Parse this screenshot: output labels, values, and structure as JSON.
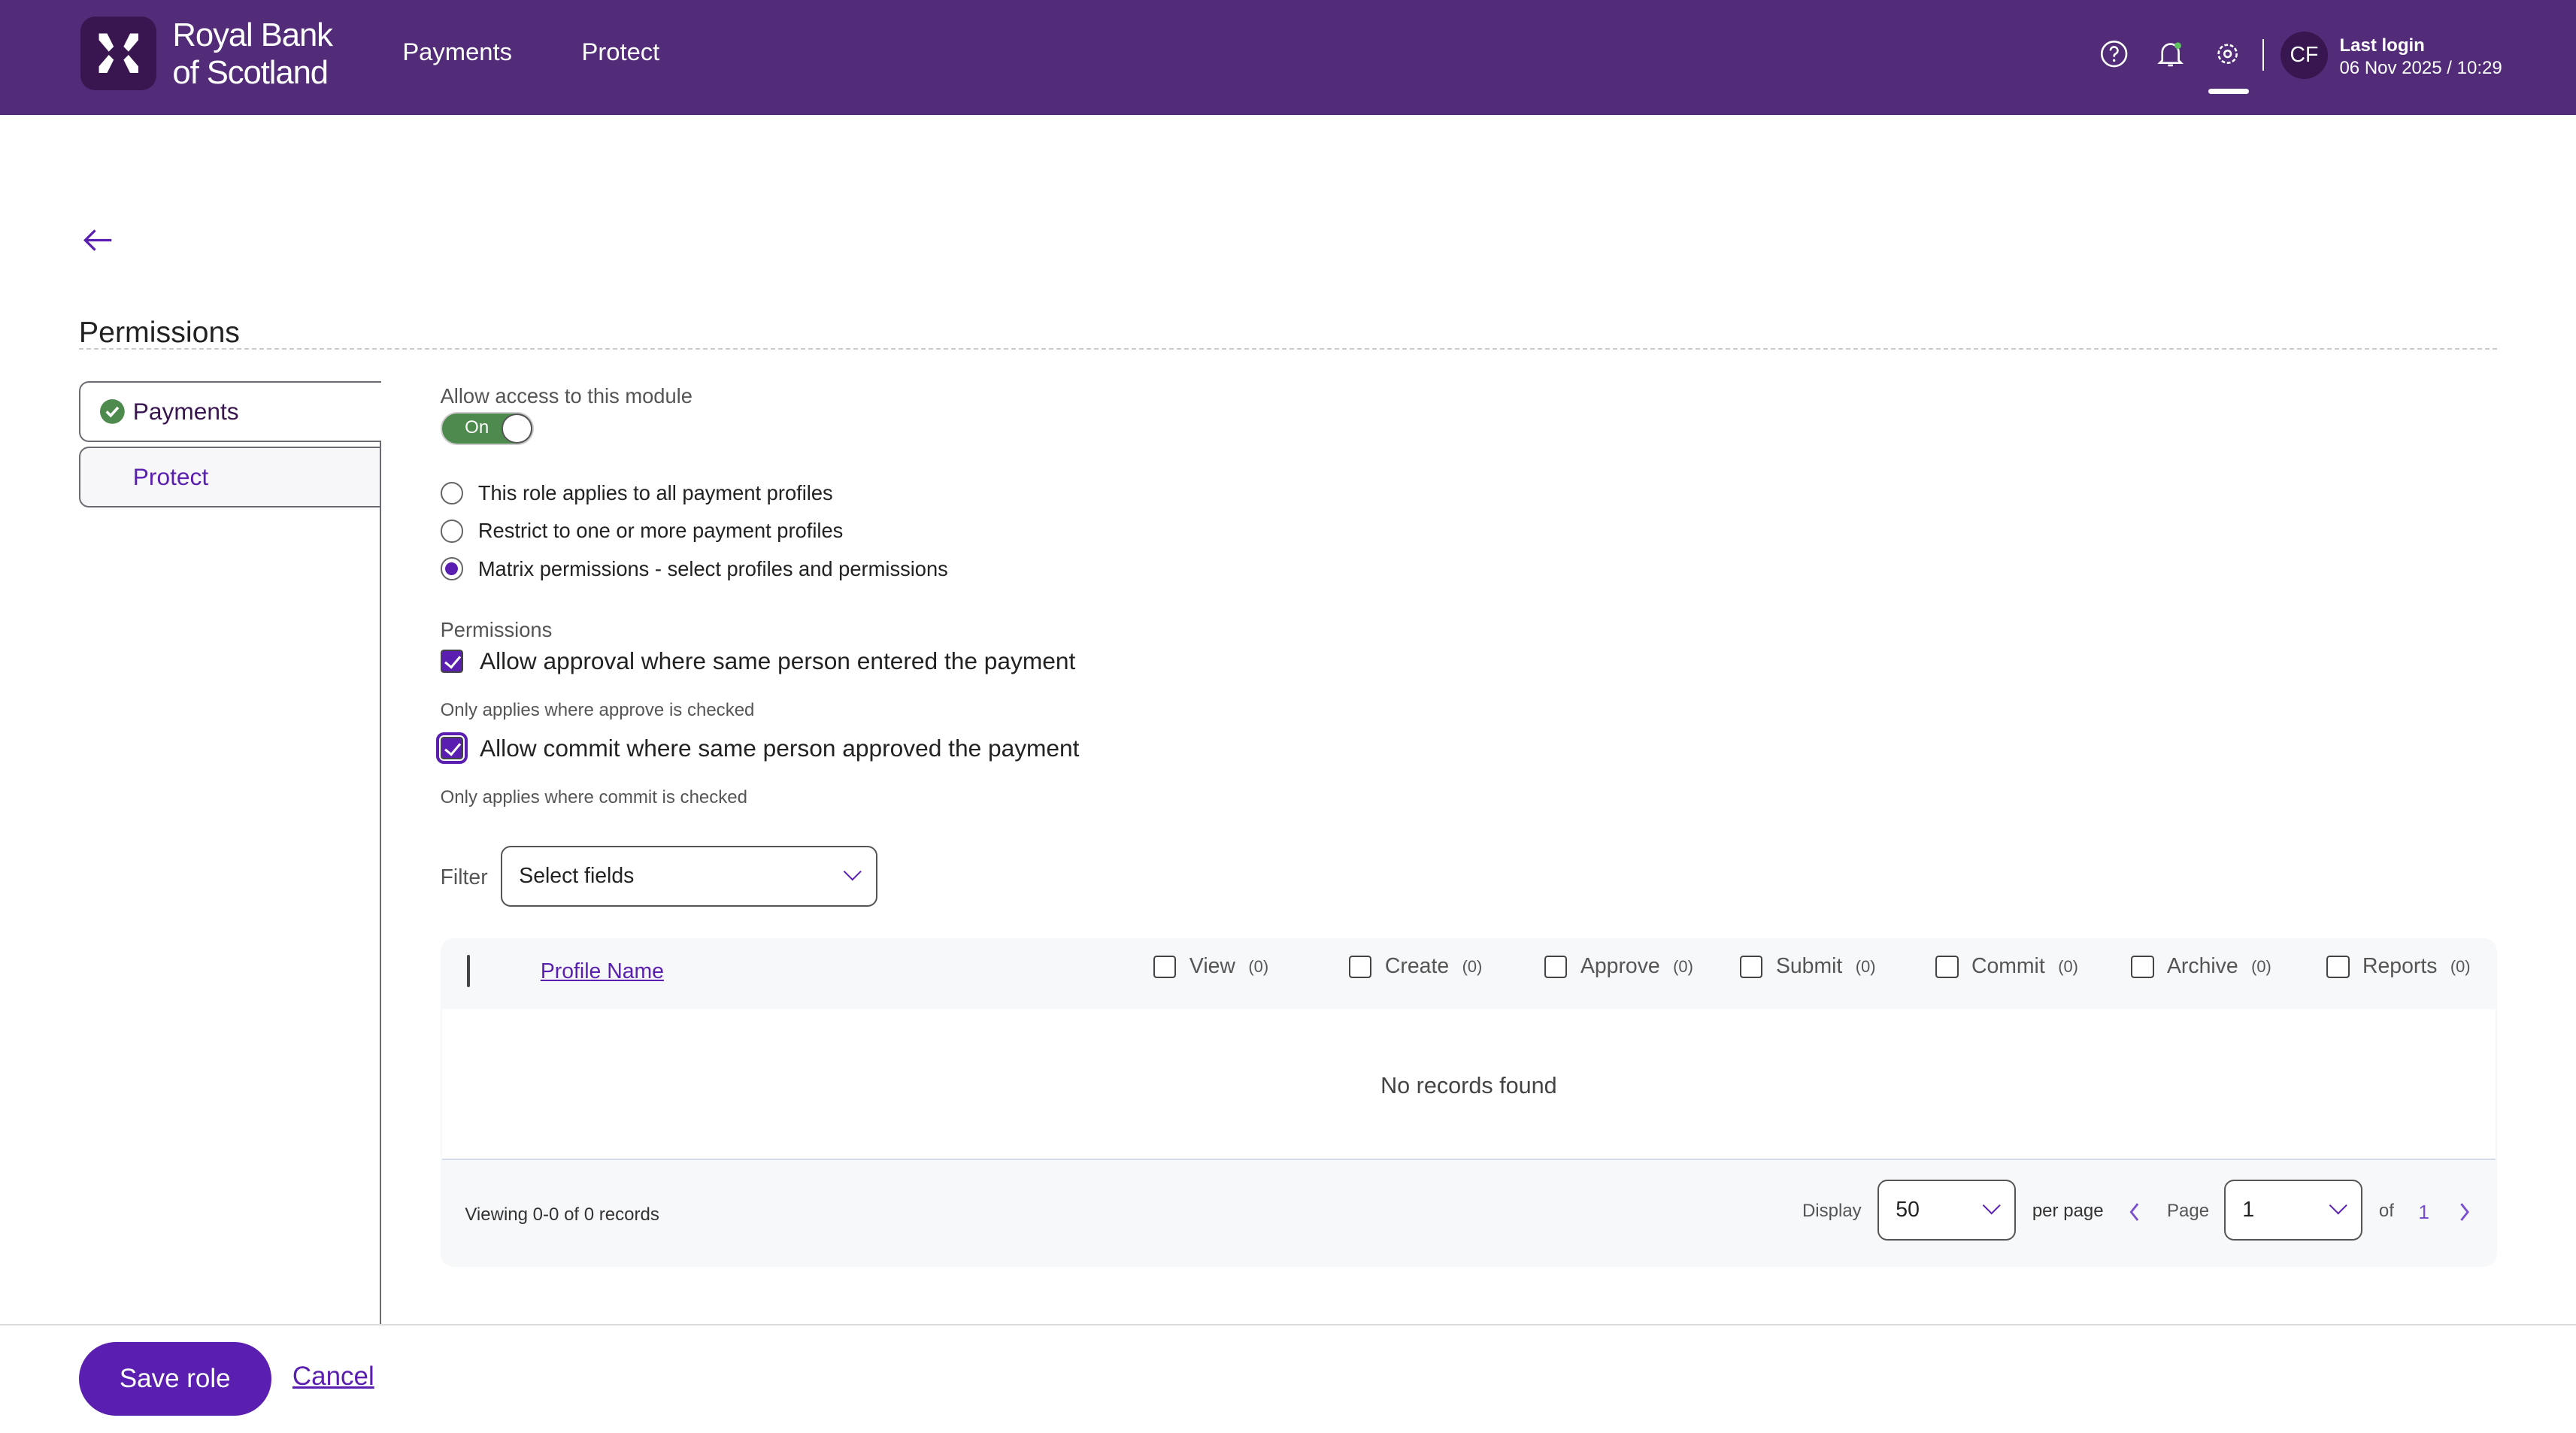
{
  "header": {
    "brand_line1": "Royal Bank",
    "brand_line2": "of Scotland",
    "nav": [
      {
        "label": "Payments"
      },
      {
        "label": "Protect"
      }
    ],
    "icons": [
      "help-icon",
      "bell-icon",
      "gear-icon"
    ],
    "avatar_initials": "CF",
    "last_login_label": "Last login",
    "last_login_value": "06 Nov 2025 / 10:29",
    "color": "#532c79"
  },
  "page": {
    "title": "Permissions"
  },
  "sidebar": {
    "items": [
      {
        "label": "Payments",
        "complete": true
      },
      {
        "label": "Protect",
        "complete": false
      }
    ]
  },
  "module": {
    "access_label": "Allow access to this module",
    "toggle_label": "On",
    "toggle_on": true,
    "radios": [
      {
        "label": "This role applies to all payment profiles",
        "selected": false
      },
      {
        "label": "Restrict to one or more payment profiles",
        "selected": false
      },
      {
        "label": "Matrix permissions - select profiles and permissions",
        "selected": true
      }
    ],
    "permissions_label": "Permissions",
    "checks": [
      {
        "label": "Allow approval where same person entered the payment",
        "checked": true,
        "hint": "Only applies where approve is checked"
      },
      {
        "label": "Allow commit where same person approved the payment",
        "checked": true,
        "hint": "Only applies where commit is checked"
      }
    ]
  },
  "filter": {
    "label": "Filter",
    "placeholder": "Select fields"
  },
  "table": {
    "profile_header": "Profile Name",
    "columns": [
      {
        "label": "View",
        "count": "(0)"
      },
      {
        "label": "Create",
        "count": "(0)"
      },
      {
        "label": "Approve",
        "count": "(0)"
      },
      {
        "label": "Submit",
        "count": "(0)"
      },
      {
        "label": "Commit",
        "count": "(0)"
      },
      {
        "label": "Archive",
        "count": "(0)"
      },
      {
        "label": "Reports",
        "count": "(0)"
      }
    ],
    "empty_text": "No records found",
    "viewing": "Viewing 0-0 of 0 records",
    "display_label": "Display",
    "per_page_value": "50",
    "per_page_label": "per page",
    "page_label": "Page",
    "page_value": "1",
    "of_label": "of",
    "total_pages": "1"
  },
  "footer": {
    "save_label": "Save role",
    "cancel_label": "Cancel"
  },
  "accent": "#5a1fb0"
}
